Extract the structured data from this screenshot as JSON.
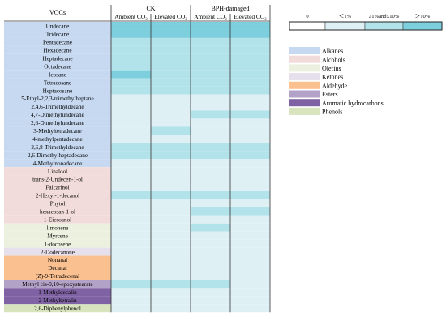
{
  "chart_data": {
    "type": "heatmap",
    "row_header": "VOCs",
    "groups": [
      {
        "name": "CK",
        "columns": [
          "Ambient CO₂",
          "Elevated CO₂"
        ]
      },
      {
        "name": "BPH-damaged",
        "columns": [
          "Ambient CO₂",
          "Elevated CO₂"
        ]
      }
    ],
    "scale": [
      {
        "label": "0",
        "color": "#ffffff"
      },
      {
        "label": "＜1%",
        "color": "#dff0f5"
      },
      {
        "label": "≥1%and≤10%",
        "color": "#b3e3ea"
      },
      {
        "label": "＞10%",
        "color": "#7ecfdd"
      }
    ],
    "categories": [
      {
        "name": "Alkanes",
        "color": "#c6d9f1"
      },
      {
        "name": "Alcohols",
        "color": "#f2dcdb"
      },
      {
        "name": "Olefins",
        "color": "#ebf1de"
      },
      {
        "name": "Ketones",
        "color": "#e6e0ec"
      },
      {
        "name": "Aldehyde",
        "color": "#fac090"
      },
      {
        "name": "Esters",
        "color": "#b3a2c7"
      },
      {
        "name": "Aromatic hydrocarbons",
        "color": "#7f62a3"
      },
      {
        "name": "Phenols",
        "color": "#d7e4bd"
      }
    ],
    "rows": [
      {
        "name": "Undecane",
        "category": 0,
        "levels": [
          3,
          3,
          3,
          3
        ]
      },
      {
        "name": "Tridecane",
        "category": 0,
        "levels": [
          3,
          3,
          3,
          3
        ]
      },
      {
        "name": "Pentadecane",
        "category": 0,
        "levels": [
          2,
          2,
          2,
          2
        ]
      },
      {
        "name": "Hexadecane",
        "category": 0,
        "levels": [
          2,
          2,
          2,
          2
        ]
      },
      {
        "name": "Heptadecane",
        "category": 0,
        "levels": [
          2,
          2,
          2,
          2
        ]
      },
      {
        "name": "Octadecane",
        "category": 0,
        "levels": [
          2,
          2,
          2,
          2
        ]
      },
      {
        "name": "Icosane",
        "category": 0,
        "levels": [
          3,
          2,
          2,
          2
        ]
      },
      {
        "name": "Tetracosane",
        "category": 0,
        "levels": [
          2,
          2,
          2,
          2
        ]
      },
      {
        "name": "Heptacosane",
        "category": 0,
        "levels": [
          2,
          2,
          2,
          2
        ]
      },
      {
        "name": "5-Ethyl-2,2,3-trimethylheptane",
        "category": 0,
        "levels": [
          1,
          1,
          1,
          1
        ]
      },
      {
        "name": "2,4,6-Trimethyldecane",
        "category": 0,
        "levels": [
          1,
          1,
          1,
          1
        ]
      },
      {
        "name": "4,7-Dimethylundecane",
        "category": 0,
        "levels": [
          1,
          1,
          2,
          2
        ]
      },
      {
        "name": "2,6-Dimethylundecane",
        "category": 0,
        "levels": [
          1,
          1,
          1,
          1
        ]
      },
      {
        "name": "3-Methyltetradecane",
        "category": 0,
        "levels": [
          1,
          2,
          1,
          1
        ]
      },
      {
        "name": "4-methylpentadecane",
        "category": 0,
        "levels": [
          1,
          1,
          1,
          1
        ]
      },
      {
        "name": "2,6,8-Trimethyldecane",
        "category": 0,
        "levels": [
          2,
          2,
          2,
          2
        ]
      },
      {
        "name": "2,6-Dimethylheptadecane",
        "category": 0,
        "levels": [
          2,
          2,
          2,
          2
        ]
      },
      {
        "name": "4-Methylnonadecane",
        "category": 0,
        "levels": [
          1,
          1,
          1,
          1
        ]
      },
      {
        "name": "Linalool",
        "category": 1,
        "levels": [
          1,
          1,
          1,
          1
        ]
      },
      {
        "name": "trans-2-Undecen-1-ol",
        "category": 1,
        "levels": [
          1,
          1,
          1,
          1
        ]
      },
      {
        "name": "Falcarinol",
        "category": 1,
        "levels": [
          1,
          1,
          1,
          1
        ]
      },
      {
        "name": "2-Hexyl-1-decanol",
        "category": 1,
        "levels": [
          2,
          2,
          2,
          2
        ]
      },
      {
        "name": "Phytol",
        "category": 1,
        "levels": [
          1,
          1,
          1,
          1
        ]
      },
      {
        "name": "hexacosan-1-ol",
        "category": 1,
        "levels": [
          1,
          1,
          2,
          2
        ]
      },
      {
        "name": "1-Eicosanol",
        "category": 1,
        "levels": [
          1,
          1,
          1,
          1
        ]
      },
      {
        "name": "limonene",
        "category": 2,
        "levels": [
          1,
          1,
          2,
          1
        ]
      },
      {
        "name": "Myrcene",
        "category": 2,
        "levels": [
          1,
          1,
          1,
          1
        ]
      },
      {
        "name": "1-docosene",
        "category": 2,
        "levels": [
          1,
          1,
          1,
          1
        ]
      },
      {
        "name": "2-Dodecanone",
        "category": 3,
        "levels": [
          1,
          1,
          1,
          1
        ]
      },
      {
        "name": "Nonanal",
        "category": 4,
        "levels": [
          1,
          1,
          1,
          1
        ]
      },
      {
        "name": "Decanal",
        "category": 4,
        "levels": [
          1,
          1,
          1,
          1
        ]
      },
      {
        "name": "(Z)-9-Tetradecenal",
        "category": 4,
        "levels": [
          1,
          1,
          1,
          1
        ]
      },
      {
        "name": "Methyl cis-9,10-epoxystearate",
        "category": 5,
        "levels": [
          2,
          2,
          2,
          1
        ]
      },
      {
        "name": "1-Methyldecalin",
        "category": 6,
        "levels": [
          1,
          1,
          1,
          1
        ]
      },
      {
        "name": "2-Methyltetralin",
        "category": 6,
        "levels": [
          1,
          1,
          1,
          1
        ]
      },
      {
        "name": "2,6-Diphenylphenol",
        "category": 7,
        "levels": [
          1,
          1,
          1,
          1
        ]
      }
    ]
  }
}
